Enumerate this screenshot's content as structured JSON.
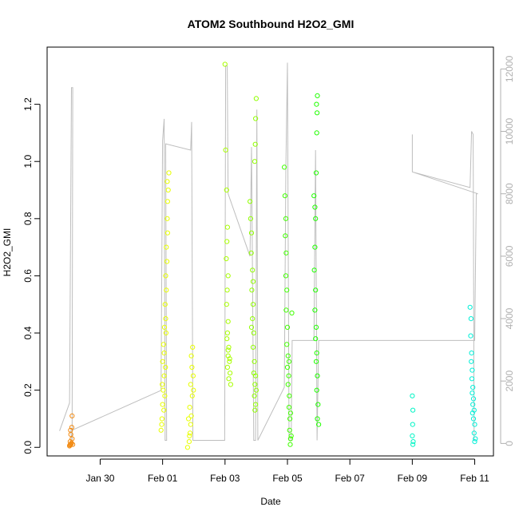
{
  "chart_data": {
    "type": "scatter",
    "title": "ATOM2 Southbound H2O2_GMI",
    "xlabel": "Date",
    "ylabel": "H2O2_GMI",
    "x_tick_labels": [
      "Jan 30",
      "Feb 01",
      "Feb 03",
      "Feb 05",
      "Feb 07",
      "Feb 09",
      "Feb 11"
    ],
    "x_tick_days": [
      30,
      32,
      34,
      36,
      38,
      40,
      42
    ],
    "xlim_days": [
      28.3,
      42.6
    ],
    "ylim": [
      -0.03,
      1.4
    ],
    "y_ticks": [
      0.0,
      0.2,
      0.4,
      0.6,
      0.8,
      1.0,
      1.2
    ],
    "y_tick_labels": [
      "0.0",
      "0.2",
      "0.4",
      "0.6",
      "0.8",
      "1.0",
      "1.2"
    ],
    "y2lim": [
      -400,
      12700
    ],
    "y2_ticks": [
      0,
      2000,
      4000,
      6000,
      8000,
      10000,
      12000
    ],
    "y2_tick_labels": [
      "0",
      "2000",
      "4000",
      "6000",
      "8000",
      "10000",
      "12000"
    ],
    "grid": false,
    "legend": "none",
    "colors": {
      "axis": "#000000",
      "altitude_line": "#bebebe",
      "right_axis": "#b0b0b0"
    },
    "color_scale": [
      "#f28a12",
      "#ffff00",
      "#7fff00",
      "#00ff00",
      "#00f5c5"
    ],
    "points": [
      {
        "x": 29.05,
        "y": 0.01,
        "c": "#f28a12"
      },
      {
        "x": 29.02,
        "y": 0.005,
        "c": "#f28a12"
      },
      {
        "x": 29.08,
        "y": 0.015,
        "c": "#f28a12"
      },
      {
        "x": 29.04,
        "y": 0.02,
        "c": "#f28a12"
      },
      {
        "x": 29.1,
        "y": 0.03,
        "c": "#f28a12"
      },
      {
        "x": 29.06,
        "y": 0.045,
        "c": "#f28a12"
      },
      {
        "x": 29.09,
        "y": 0.07,
        "c": "#f28a12"
      },
      {
        "x": 29.05,
        "y": 0.06,
        "c": "#f28a12"
      },
      {
        "x": 29.1,
        "y": 0.11,
        "c": "#f28a12"
      },
      {
        "x": 29.03,
        "y": 0.008,
        "c": "#f28a12"
      },
      {
        "x": 29.07,
        "y": 0.012,
        "c": "#f28a12"
      },
      {
        "x": 29.12,
        "y": 0.01,
        "c": "#f28a12"
      },
      {
        "x": 31.95,
        "y": 0.06,
        "c": "#e8ff00"
      },
      {
        "x": 31.98,
        "y": 0.1,
        "c": "#e8ff00"
      },
      {
        "x": 32.0,
        "y": 0.15,
        "c": "#e8ff00"
      },
      {
        "x": 32.02,
        "y": 0.2,
        "c": "#e8ff00"
      },
      {
        "x": 32.04,
        "y": 0.13,
        "c": "#e8ff00"
      },
      {
        "x": 32.05,
        "y": 0.25,
        "c": "#e8ff00"
      },
      {
        "x": 32.0,
        "y": 0.3,
        "c": "#e8ff00"
      },
      {
        "x": 32.03,
        "y": 0.36,
        "c": "#e8ff00"
      },
      {
        "x": 32.06,
        "y": 0.42,
        "c": "#e8ff00"
      },
      {
        "x": 32.1,
        "y": 0.45,
        "c": "#e8ff00"
      },
      {
        "x": 32.08,
        "y": 0.5,
        "c": "#e8ff00"
      },
      {
        "x": 32.12,
        "y": 0.55,
        "c": "#e8ff00"
      },
      {
        "x": 32.1,
        "y": 0.6,
        "c": "#e8ff00"
      },
      {
        "x": 32.14,
        "y": 0.65,
        "c": "#e8ff00"
      },
      {
        "x": 32.12,
        "y": 0.7,
        "c": "#e8ff00"
      },
      {
        "x": 32.16,
        "y": 0.75,
        "c": "#e8ff00"
      },
      {
        "x": 32.15,
        "y": 0.8,
        "c": "#e8ff00"
      },
      {
        "x": 32.16,
        "y": 0.86,
        "c": "#e8ff00"
      },
      {
        "x": 32.18,
        "y": 0.9,
        "c": "#e8ff00"
      },
      {
        "x": 32.15,
        "y": 0.93,
        "c": "#e8ff00"
      },
      {
        "x": 32.2,
        "y": 0.96,
        "c": "#e8ff00"
      },
      {
        "x": 32.05,
        "y": 0.33,
        "c": "#e8ff00"
      },
      {
        "x": 32.07,
        "y": 0.18,
        "c": "#e8ff00"
      },
      {
        "x": 31.97,
        "y": 0.08,
        "c": "#e8ff00"
      },
      {
        "x": 32.09,
        "y": 0.28,
        "c": "#e8ff00"
      },
      {
        "x": 32.11,
        "y": 0.4,
        "c": "#e8ff00"
      },
      {
        "x": 31.99,
        "y": 0.22,
        "c": "#e8ff00"
      },
      {
        "x": 32.8,
        "y": 0.0,
        "c": "#e8ff00"
      },
      {
        "x": 32.85,
        "y": 0.02,
        "c": "#e8ff00"
      },
      {
        "x": 32.88,
        "y": 0.05,
        "c": "#e8ff00"
      },
      {
        "x": 32.9,
        "y": 0.08,
        "c": "#e8ff00"
      },
      {
        "x": 32.92,
        "y": 0.11,
        "c": "#e8ff00"
      },
      {
        "x": 32.87,
        "y": 0.14,
        "c": "#e8ff00"
      },
      {
        "x": 32.95,
        "y": 0.18,
        "c": "#e8ff00"
      },
      {
        "x": 32.9,
        "y": 0.22,
        "c": "#e8ff00"
      },
      {
        "x": 32.98,
        "y": 0.25,
        "c": "#e8ff00"
      },
      {
        "x": 32.94,
        "y": 0.28,
        "c": "#e8ff00"
      },
      {
        "x": 32.92,
        "y": 0.32,
        "c": "#e8ff00"
      },
      {
        "x": 32.96,
        "y": 0.35,
        "c": "#e8ff00"
      },
      {
        "x": 32.99,
        "y": 0.2,
        "c": "#e8ff00"
      },
      {
        "x": 32.83,
        "y": 0.1,
        "c": "#e8ff00"
      },
      {
        "x": 32.86,
        "y": 0.04,
        "c": "#e8ff00"
      },
      {
        "x": 34.0,
        "y": 1.34,
        "c": "#a8ff00"
      },
      {
        "x": 34.02,
        "y": 1.04,
        "c": "#a8ff00"
      },
      {
        "x": 34.05,
        "y": 0.9,
        "c": "#a8ff00"
      },
      {
        "x": 34.08,
        "y": 0.77,
        "c": "#a8ff00"
      },
      {
        "x": 34.06,
        "y": 0.72,
        "c": "#a8ff00"
      },
      {
        "x": 34.04,
        "y": 0.66,
        "c": "#a8ff00"
      },
      {
        "x": 34.1,
        "y": 0.6,
        "c": "#a8ff00"
      },
      {
        "x": 34.07,
        "y": 0.55,
        "c": "#a8ff00"
      },
      {
        "x": 34.05,
        "y": 0.5,
        "c": "#a8ff00"
      },
      {
        "x": 34.1,
        "y": 0.44,
        "c": "#a8ff00"
      },
      {
        "x": 34.08,
        "y": 0.4,
        "c": "#a8ff00"
      },
      {
        "x": 34.12,
        "y": 0.35,
        "c": "#a8ff00"
      },
      {
        "x": 34.1,
        "y": 0.32,
        "c": "#a8ff00"
      },
      {
        "x": 34.14,
        "y": 0.3,
        "c": "#a8ff00"
      },
      {
        "x": 34.08,
        "y": 0.28,
        "c": "#a8ff00"
      },
      {
        "x": 34.16,
        "y": 0.26,
        "c": "#a8ff00"
      },
      {
        "x": 34.12,
        "y": 0.24,
        "c": "#a8ff00"
      },
      {
        "x": 34.18,
        "y": 0.22,
        "c": "#a8ff00"
      },
      {
        "x": 34.1,
        "y": 0.34,
        "c": "#a8ff00"
      },
      {
        "x": 34.06,
        "y": 0.38,
        "c": "#a8ff00"
      },
      {
        "x": 34.15,
        "y": 0.31,
        "c": "#a8ff00"
      },
      {
        "x": 34.8,
        "y": 0.86,
        "c": "#90ff00"
      },
      {
        "x": 34.82,
        "y": 0.8,
        "c": "#90ff00"
      },
      {
        "x": 34.85,
        "y": 0.75,
        "c": "#90ff00"
      },
      {
        "x": 34.84,
        "y": 0.68,
        "c": "#90ff00"
      },
      {
        "x": 34.88,
        "y": 0.62,
        "c": "#90ff00"
      },
      {
        "x": 34.86,
        "y": 0.55,
        "c": "#90ff00"
      },
      {
        "x": 34.9,
        "y": 0.5,
        "c": "#90ff00"
      },
      {
        "x": 34.88,
        "y": 0.45,
        "c": "#90ff00"
      },
      {
        "x": 34.92,
        "y": 0.4,
        "c": "#90ff00"
      },
      {
        "x": 34.9,
        "y": 0.35,
        "c": "#90ff00"
      },
      {
        "x": 34.94,
        "y": 0.3,
        "c": "#90ff00"
      },
      {
        "x": 34.92,
        "y": 0.26,
        "c": "#90ff00"
      },
      {
        "x": 34.96,
        "y": 0.22,
        "c": "#90ff00"
      },
      {
        "x": 34.94,
        "y": 0.18,
        "c": "#90ff00"
      },
      {
        "x": 34.98,
        "y": 0.15,
        "c": "#90ff00"
      },
      {
        "x": 34.96,
        "y": 0.13,
        "c": "#90ff00"
      },
      {
        "x": 35.0,
        "y": 0.2,
        "c": "#90ff00"
      },
      {
        "x": 34.98,
        "y": 0.25,
        "c": "#90ff00"
      },
      {
        "x": 34.95,
        "y": 1.0,
        "c": "#90ff00"
      },
      {
        "x": 34.98,
        "y": 1.15,
        "c": "#90ff00"
      },
      {
        "x": 35.0,
        "y": 1.22,
        "c": "#90ff00"
      },
      {
        "x": 34.97,
        "y": 1.06,
        "c": "#90ff00"
      },
      {
        "x": 34.9,
        "y": 0.58,
        "c": "#90ff00"
      },
      {
        "x": 34.85,
        "y": 0.42,
        "c": "#90ff00"
      },
      {
        "x": 35.9,
        "y": 0.98,
        "c": "#40ff00"
      },
      {
        "x": 35.92,
        "y": 0.88,
        "c": "#40ff00"
      },
      {
        "x": 35.95,
        "y": 0.8,
        "c": "#40ff00"
      },
      {
        "x": 35.93,
        "y": 0.74,
        "c": "#40ff00"
      },
      {
        "x": 35.96,
        "y": 0.68,
        "c": "#40ff00"
      },
      {
        "x": 35.95,
        "y": 0.6,
        "c": "#40ff00"
      },
      {
        "x": 35.98,
        "y": 0.55,
        "c": "#40ff00"
      },
      {
        "x": 35.96,
        "y": 0.48,
        "c": "#40ff00"
      },
      {
        "x": 36.0,
        "y": 0.42,
        "c": "#40ff00"
      },
      {
        "x": 35.98,
        "y": 0.36,
        "c": "#40ff00"
      },
      {
        "x": 36.02,
        "y": 0.32,
        "c": "#40ff00"
      },
      {
        "x": 36.0,
        "y": 0.28,
        "c": "#40ff00"
      },
      {
        "x": 36.04,
        "y": 0.25,
        "c": "#40ff00"
      },
      {
        "x": 36.02,
        "y": 0.22,
        "c": "#40ff00"
      },
      {
        "x": 36.06,
        "y": 0.18,
        "c": "#40ff00"
      },
      {
        "x": 36.05,
        "y": 0.14,
        "c": "#40ff00"
      },
      {
        "x": 36.08,
        "y": 0.1,
        "c": "#40ff00"
      },
      {
        "x": 36.07,
        "y": 0.06,
        "c": "#40ff00"
      },
      {
        "x": 36.1,
        "y": 0.03,
        "c": "#40ff00"
      },
      {
        "x": 36.09,
        "y": 0.01,
        "c": "#40ff00"
      },
      {
        "x": 36.12,
        "y": 0.04,
        "c": "#40ff00"
      },
      {
        "x": 36.14,
        "y": 0.47,
        "c": "#40ff00"
      },
      {
        "x": 36.05,
        "y": 0.3,
        "c": "#40ff00"
      },
      {
        "x": 36.1,
        "y": 0.12,
        "c": "#40ff00"
      },
      {
        "x": 36.85,
        "y": 0.88,
        "c": "#20ff00"
      },
      {
        "x": 36.88,
        "y": 0.84,
        "c": "#20ff00"
      },
      {
        "x": 36.9,
        "y": 0.8,
        "c": "#20ff00"
      },
      {
        "x": 36.92,
        "y": 0.96,
        "c": "#20ff00"
      },
      {
        "x": 36.94,
        "y": 1.1,
        "c": "#20ff00"
      },
      {
        "x": 36.95,
        "y": 1.17,
        "c": "#20ff00"
      },
      {
        "x": 36.96,
        "y": 1.23,
        "c": "#20ff00"
      },
      {
        "x": 36.93,
        "y": 1.2,
        "c": "#20ff00"
      },
      {
        "x": 36.88,
        "y": 0.7,
        "c": "#20ff00"
      },
      {
        "x": 36.86,
        "y": 0.62,
        "c": "#20ff00"
      },
      {
        "x": 36.9,
        "y": 0.55,
        "c": "#20ff00"
      },
      {
        "x": 36.88,
        "y": 0.48,
        "c": "#20ff00"
      },
      {
        "x": 36.92,
        "y": 0.42,
        "c": "#20ff00"
      },
      {
        "x": 36.9,
        "y": 0.38,
        "c": "#20ff00"
      },
      {
        "x": 36.94,
        "y": 0.33,
        "c": "#20ff00"
      },
      {
        "x": 36.92,
        "y": 0.3,
        "c": "#20ff00"
      },
      {
        "x": 36.96,
        "y": 0.25,
        "c": "#20ff00"
      },
      {
        "x": 36.94,
        "y": 0.2,
        "c": "#20ff00"
      },
      {
        "x": 36.98,
        "y": 0.15,
        "c": "#20ff00"
      },
      {
        "x": 36.96,
        "y": 0.1,
        "c": "#20ff00"
      },
      {
        "x": 37.0,
        "y": 0.08,
        "c": "#20ff00"
      },
      {
        "x": 40.0,
        "y": 0.18,
        "c": "#00f5c5"
      },
      {
        "x": 40.02,
        "y": 0.13,
        "c": "#00f5c5"
      },
      {
        "x": 40.01,
        "y": 0.08,
        "c": "#00f5c5"
      },
      {
        "x": 40.0,
        "y": 0.04,
        "c": "#00f5c5"
      },
      {
        "x": 40.03,
        "y": 0.02,
        "c": "#00f5c5"
      },
      {
        "x": 40.02,
        "y": 0.01,
        "c": "#00f5c5"
      },
      {
        "x": 41.85,
        "y": 0.49,
        "c": "#00f0d8"
      },
      {
        "x": 41.88,
        "y": 0.45,
        "c": "#00f0d8"
      },
      {
        "x": 41.87,
        "y": 0.39,
        "c": "#00f0d8"
      },
      {
        "x": 41.9,
        "y": 0.33,
        "c": "#00f0d8"
      },
      {
        "x": 41.89,
        "y": 0.3,
        "c": "#00f0d8"
      },
      {
        "x": 41.92,
        "y": 0.27,
        "c": "#00f0d8"
      },
      {
        "x": 41.91,
        "y": 0.24,
        "c": "#00f0d8"
      },
      {
        "x": 41.94,
        "y": 0.21,
        "c": "#00f0d8"
      },
      {
        "x": 41.92,
        "y": 0.19,
        "c": "#00f0d8"
      },
      {
        "x": 41.96,
        "y": 0.17,
        "c": "#00f0d8"
      },
      {
        "x": 41.94,
        "y": 0.15,
        "c": "#00f0d8"
      },
      {
        "x": 41.98,
        "y": 0.13,
        "c": "#00f0d8"
      },
      {
        "x": 41.96,
        "y": 0.1,
        "c": "#00f0d8"
      },
      {
        "x": 42.0,
        "y": 0.08,
        "c": "#00f0d8"
      },
      {
        "x": 41.98,
        "y": 0.05,
        "c": "#00f0d8"
      },
      {
        "x": 42.02,
        "y": 0.03,
        "c": "#00f0d8"
      },
      {
        "x": 42.0,
        "y": 0.02,
        "c": "#00f0d8"
      },
      {
        "x": 41.93,
        "y": 0.12,
        "c": "#00f0d8"
      }
    ],
    "altitude_track": [
      [
        28.7,
        400
      ],
      [
        29.02,
        1300
      ],
      [
        29.08,
        11400
      ],
      [
        29.12,
        11400
      ],
      [
        29.1,
        100
      ],
      [
        29.05,
        400
      ],
      [
        31.95,
        1700
      ],
      [
        32.0,
        9700
      ],
      [
        32.05,
        10400
      ],
      [
        32.08,
        100
      ],
      [
        32.13,
        100
      ],
      [
        32.1,
        9600
      ],
      [
        32.9,
        9400
      ],
      [
        32.93,
        10300
      ],
      [
        32.97,
        100
      ],
      [
        33.03,
        100
      ],
      [
        33.99,
        100
      ],
      [
        34.02,
        12100
      ],
      [
        34.07,
        12100
      ],
      [
        34.1,
        8000
      ],
      [
        34.8,
        6000
      ],
      [
        34.85,
        9500
      ],
      [
        34.92,
        100
      ],
      [
        34.98,
        100
      ],
      [
        35.02,
        10700
      ],
      [
        35.05,
        100
      ],
      [
        35.9,
        1800
      ],
      [
        35.95,
        8800
      ],
      [
        36.0,
        12200
      ],
      [
        36.05,
        100
      ],
      [
        36.12,
        100
      ],
      [
        36.15,
        3300
      ],
      [
        36.85,
        3300
      ],
      [
        36.9,
        9400
      ],
      [
        36.95,
        100
      ],
      [
        37.0,
        3300
      ],
      [
        42.0,
        3300
      ],
      [
        42.05,
        8000
      ],
      [
        42.1,
        8000
      ],
      [
        40.0,
        8700
      ],
      [
        40.0,
        9900
      ],
      [
        40.0,
        8700
      ],
      [
        41.85,
        8200
      ],
      [
        41.9,
        10000
      ],
      [
        41.95,
        9900
      ],
      [
        41.98,
        100
      ],
      [
        42.0,
        100
      ]
    ]
  }
}
